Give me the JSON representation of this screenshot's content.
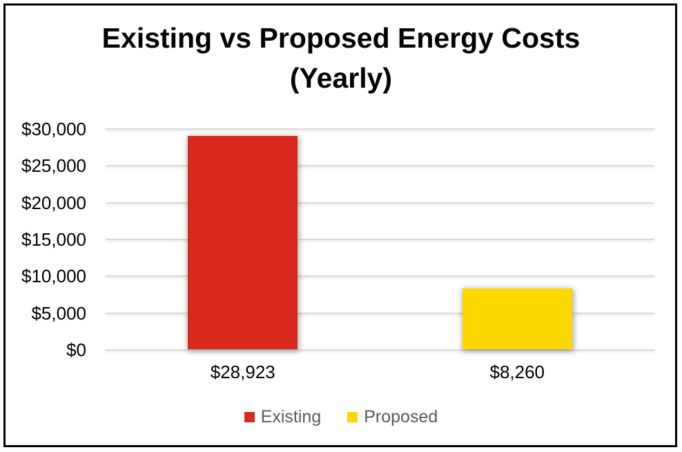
{
  "chart_data": {
    "type": "bar",
    "title": "Existing vs Proposed Energy Costs (Yearly)",
    "title_lines": [
      "Existing vs Proposed Energy Costs",
      "(Yearly)"
    ],
    "categories": [
      "Existing",
      "Proposed"
    ],
    "series": [
      {
        "name": "Existing",
        "value": 28923,
        "label": "$28,923",
        "color": "#D9291D"
      },
      {
        "name": "Proposed",
        "value": 8260,
        "label": "$8,260",
        "color": "#FFD800"
      }
    ],
    "xlabel": "",
    "ylabel": "",
    "ylim": [
      0,
      30000
    ],
    "yticks": [
      {
        "value": 30000,
        "label": "$30,000"
      },
      {
        "value": 25000,
        "label": "$25,000"
      },
      {
        "value": 20000,
        "label": "$20,000"
      },
      {
        "value": 15000,
        "label": "$15,000"
      },
      {
        "value": 10000,
        "label": "$10,000"
      },
      {
        "value": 5000,
        "label": "$5,000"
      },
      {
        "value": 0,
        "label": "$0"
      }
    ],
    "grid": true,
    "legend_position": "bottom",
    "colors": {
      "gridline": "#D9D9D9",
      "legend_text": "#595959",
      "axis_text": "#000000",
      "title_text": "#000000",
      "frame_border": "#000000",
      "background": "#FFFFFF"
    }
  }
}
